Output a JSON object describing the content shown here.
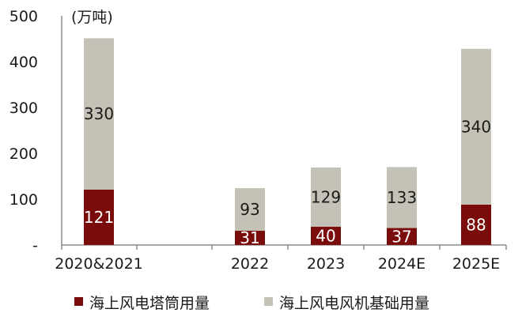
{
  "chart_data": {
    "type": "bar",
    "stacked": true,
    "title": "",
    "unit_label": "(万吨)",
    "xlabel": "",
    "ylabel": "",
    "ylim": [
      0,
      500
    ],
    "y_ticks": [
      "500",
      "400",
      "300",
      "200",
      "100",
      "-"
    ],
    "y_tick_values": [
      500,
      400,
      300,
      200,
      100,
      0
    ],
    "categories": [
      "2020&2021",
      "2022",
      "2023",
      "2024E",
      "2025E"
    ],
    "series": [
      {
        "name": "海上风电塔筒用量",
        "color": "#7b0c0c",
        "values": [
          121,
          31,
          40,
          37,
          88
        ]
      },
      {
        "name": "海上风电风机基础用量",
        "color": "#c4c1b7",
        "values": [
          330,
          93,
          129,
          133,
          340
        ]
      }
    ],
    "legend_position": "bottom",
    "grid": false
  }
}
